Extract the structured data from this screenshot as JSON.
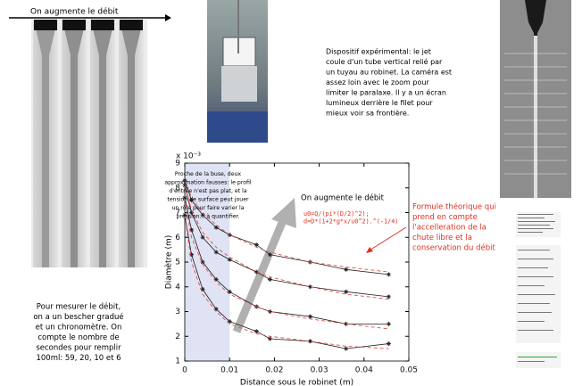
{
  "left_panel": {
    "heading": "On augmente le débit",
    "note": [
      "Pour mesurer le débit,",
      "on a un bescher gradué",
      "et un chronomètre. On",
      "compte le nombre de",
      "secondes pour remplir",
      "100ml: 59, 20, 10 et 6"
    ]
  },
  "setup": {
    "caption": [
      "Dispositif expérimental: le jet",
      "coule d'un tube vertical relié par",
      "un tuyau au robinet. La caméra est",
      "assez loin avec le zoom pour",
      "limiter le paralaxe. Il y a un écran",
      "lumineux derrière le filet pour",
      "mieux voir sa frontière."
    ]
  },
  "theory_note": [
    "Formule théorique qui",
    "prend en compte",
    "l'accelleration de la",
    "chute libre et la",
    "conservation du débit"
  ],
  "chart_data": {
    "type": "line",
    "y_multiplier": "x 10⁻³",
    "xlabel": "Distance sous le robinet (m)",
    "ylabel": "Diamètre (m)",
    "xlim": [
      0,
      0.05
    ],
    "ylim": [
      1,
      9
    ],
    "xticks": [
      0,
      0.01,
      0.02,
      0.03,
      0.04,
      0.05
    ],
    "yticks": [
      1,
      2,
      3,
      4,
      5,
      6,
      7,
      8,
      9
    ],
    "highlight_xrange": [
      0,
      0.01
    ],
    "highlight_note": [
      "Proche de la buse, deux",
      "approximation fausses: le profil",
      "d'entrée n'est pas plat, et la",
      "tension de surface peut jouer",
      "un rôle pour faire varier la",
      "pression... à quantifier."
    ],
    "arrow_note": "On augmente le débit",
    "formula": [
      "u0=Q/(pi*(D/2)^2);",
      "d=D*(1+2*g*x/u0^2).^(-1/4)"
    ],
    "x": [
      0,
      0.0015,
      0.004,
      0.007,
      0.01,
      0.016,
      0.019,
      0.028,
      0.036,
      0.0455
    ],
    "series": [
      {
        "color": "#222222",
        "values": [
          8.3,
          7.5,
          6.9,
          6.4,
          6.1,
          5.7,
          5.3,
          5.0,
          4.7,
          4.5
        ]
      },
      {
        "color": "#222222",
        "values": [
          8.1,
          7.0,
          6.0,
          5.4,
          5.1,
          4.6,
          4.3,
          4.0,
          3.8,
          3.6
        ]
      },
      {
        "color": "#222222",
        "values": [
          7.6,
          6.3,
          5.0,
          4.3,
          3.8,
          3.2,
          3.0,
          2.8,
          2.5,
          2.5
        ]
      },
      {
        "color": "#222222",
        "values": [
          6.9,
          5.3,
          3.9,
          3.1,
          2.6,
          2.2,
          1.9,
          1.8,
          1.5,
          1.7
        ]
      },
      {
        "color": "#e05050",
        "dashed": true,
        "values": [
          8.3,
          7.6,
          7.0,
          6.5,
          6.1,
          5.6,
          5.4,
          5.0,
          4.8,
          4.6
        ]
      },
      {
        "color": "#e05050",
        "dashed": true,
        "values": [
          8.1,
          7.1,
          6.2,
          5.6,
          5.2,
          4.6,
          4.4,
          4.0,
          3.7,
          3.5
        ]
      },
      {
        "color": "#e05050",
        "dashed": true,
        "values": [
          7.6,
          6.0,
          4.9,
          4.2,
          3.7,
          3.2,
          3.0,
          2.7,
          2.5,
          2.3
        ]
      },
      {
        "color": "#e05050",
        "dashed": true,
        "values": [
          6.9,
          5.0,
          3.7,
          3.0,
          2.5,
          2.1,
          2.0,
          1.8,
          1.6,
          1.5
        ]
      }
    ]
  }
}
